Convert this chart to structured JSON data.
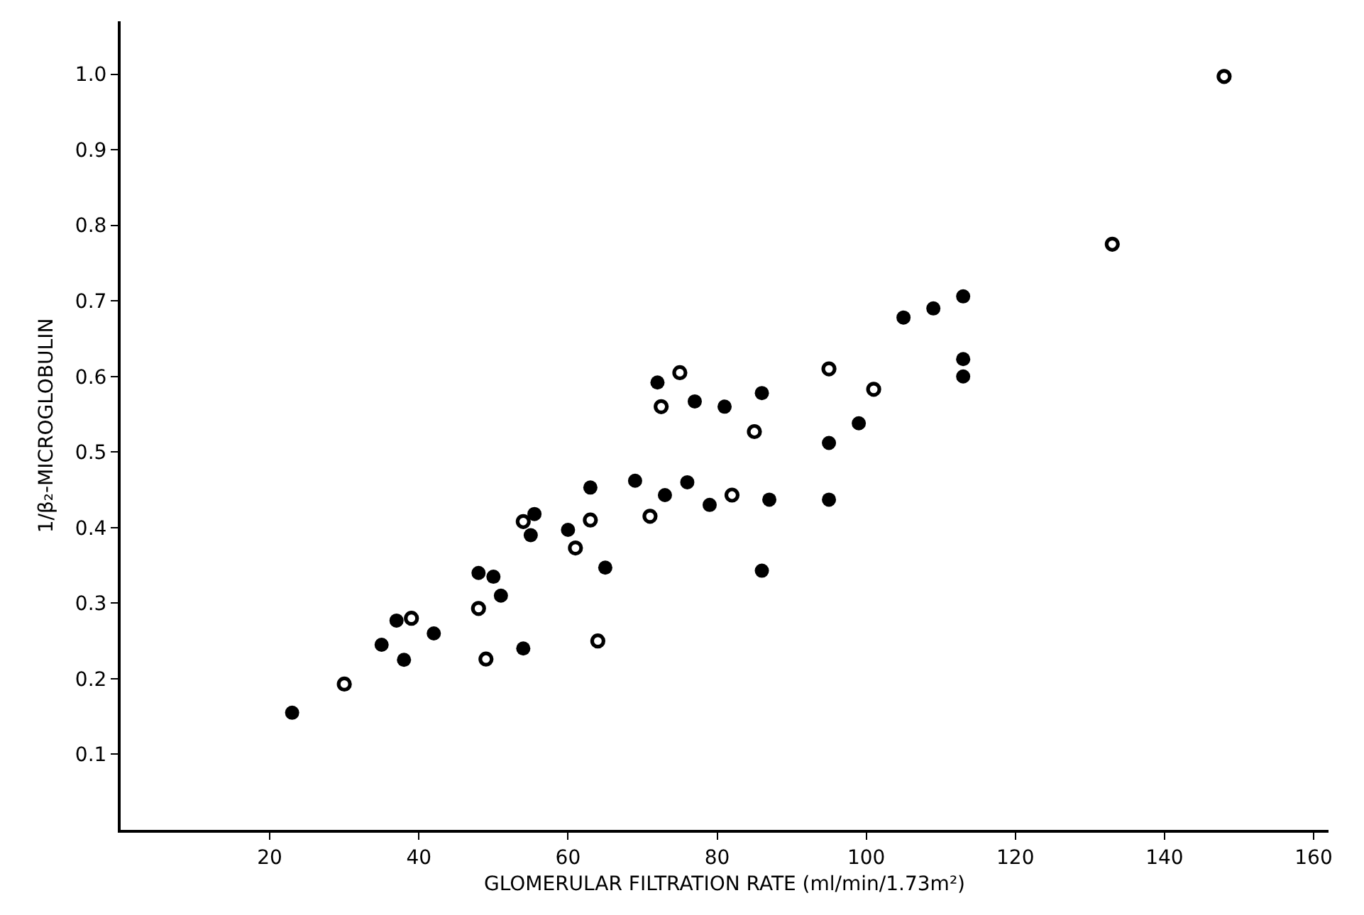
{
  "chart_data": {
    "type": "scatter",
    "xlabel": "GLOMERULAR FILTRATION RATE (ml/min/1.73m²)",
    "ylabel": "1/β₂-MICROGLOBULIN",
    "marker": "circle",
    "xlim": [
      0,
      162
    ],
    "xticks": [
      20,
      40,
      60,
      80,
      100,
      120,
      140,
      160
    ],
    "ylim": [
      0,
      1.07
    ],
    "yticks": [
      0.1,
      0.2,
      0.3,
      0.4,
      0.5,
      0.6,
      0.7,
      0.8,
      0.9,
      {
        "value": 1,
        "label": "1.0"
      }
    ],
    "series": [
      {
        "color": "#000000",
        "x": [
          23,
          35,
          37,
          38,
          42,
          48,
          50,
          51,
          54,
          55,
          55.5,
          60,
          63,
          65,
          69,
          72,
          73,
          76,
          77,
          79,
          81,
          86,
          86,
          87,
          95,
          95,
          99,
          105,
          109,
          113,
          113,
          113
        ],
        "values": [
          0.155,
          0.245,
          0.277,
          0.225,
          0.26,
          0.34,
          0.335,
          0.31,
          0.24,
          0.39,
          0.418,
          0.397,
          0.453,
          0.347,
          0.462,
          0.592,
          0.443,
          0.46,
          0.567,
          0.43,
          0.56,
          0.578,
          0.343,
          0.437,
          0.512,
          0.437,
          0.538,
          0.678,
          0.69,
          0.706,
          0.623,
          0.6
        ]
      },
      {
        "color": "#000000",
        "marker": "circle-open",
        "x": [
          30,
          39,
          48,
          49,
          54,
          61,
          63,
          64,
          71,
          72.5,
          75,
          82,
          85,
          95,
          101,
          133,
          148
        ],
        "values": [
          0.193,
          0.28,
          0.293,
          0.226,
          0.408,
          0.373,
          0.41,
          0.25,
          0.415,
          0.56,
          0.605,
          0.443,
          0.527,
          0.61,
          0.583,
          0.775,
          0.997
        ]
      }
    ]
  }
}
